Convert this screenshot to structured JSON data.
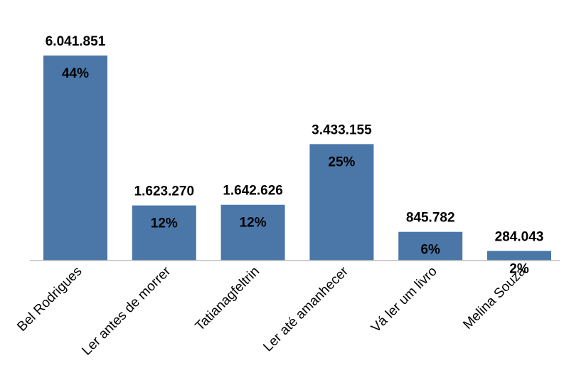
{
  "chart_data": {
    "type": "bar",
    "categories": [
      "Bel Rodrigues",
      "Ler antes de morrer",
      "Tatianagfeltrin",
      "Ler até amanhecer",
      "Vá ler um livro",
      "Melina Souza"
    ],
    "values": [
      6041851,
      1623270,
      1642626,
      3433155,
      845782,
      284043
    ],
    "value_labels": [
      "6.041.851",
      "1.623.270",
      "1.642.626",
      "3.433.155",
      "845.782",
      "284.043"
    ],
    "percent_labels": [
      "44%",
      "12%",
      "12%",
      "25%",
      "6%",
      "2%"
    ],
    "title": "",
    "xlabel": "",
    "ylabel": "",
    "ylim": [
      0,
      6500000
    ],
    "grid": false,
    "colors": {
      "bar": "#4a77a8",
      "axis": "#bfbfbf"
    }
  }
}
